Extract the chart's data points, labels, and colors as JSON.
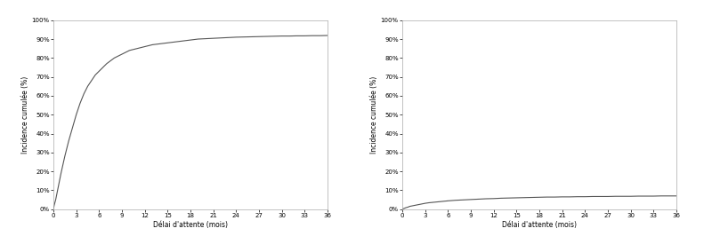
{
  "left_curve": {
    "x": [
      0,
      0.1,
      0.3,
      0.5,
      0.75,
      1,
      1.5,
      2,
      2.5,
      3,
      3.5,
      4,
      4.5,
      5,
      5.5,
      6,
      7,
      8,
      9,
      10,
      11,
      12,
      13,
      14,
      15,
      16,
      17,
      18,
      19,
      20,
      21,
      22,
      23,
      24,
      25,
      26,
      27,
      28,
      29,
      30,
      31,
      32,
      33,
      34,
      35,
      36
    ],
    "y": [
      0,
      2,
      5,
      9,
      14,
      19,
      28,
      36,
      43,
      50,
      56,
      61,
      65,
      68,
      71,
      73,
      77,
      80,
      82,
      84,
      85,
      86,
      87,
      87.5,
      88,
      88.5,
      89,
      89.5,
      90,
      90.2,
      90.4,
      90.6,
      90.8,
      91.0,
      91.1,
      91.2,
      91.3,
      91.4,
      91.5,
      91.6,
      91.6,
      91.7,
      91.7,
      91.8,
      91.8,
      91.9
    ]
  },
  "right_curve": {
    "x": [
      0,
      0.1,
      0.3,
      0.5,
      0.75,
      1,
      1.5,
      2,
      2.5,
      3,
      3.5,
      4,
      4.5,
      5,
      5.5,
      6,
      7,
      8,
      9,
      10,
      11,
      12,
      13,
      14,
      15,
      16,
      17,
      18,
      19,
      20,
      21,
      22,
      23,
      24,
      25,
      26,
      27,
      28,
      29,
      30,
      31,
      32,
      33,
      34,
      35,
      36
    ],
    "y": [
      0,
      0.2,
      0.5,
      0.8,
      1.1,
      1.5,
      1.9,
      2.3,
      2.7,
      3.1,
      3.4,
      3.6,
      3.8,
      4.0,
      4.2,
      4.4,
      4.7,
      4.9,
      5.1,
      5.3,
      5.5,
      5.6,
      5.8,
      5.9,
      6.0,
      6.1,
      6.2,
      6.3,
      6.4,
      6.4,
      6.5,
      6.5,
      6.6,
      6.6,
      6.7,
      6.7,
      6.7,
      6.8,
      6.8,
      6.8,
      6.9,
      6.9,
      6.9,
      7.0,
      7.0,
      7.0
    ]
  },
  "ylabel": "Incidence cumulée (%)",
  "xlabel": "Délai d'attente (mois)",
  "yticks": [
    0,
    10,
    20,
    30,
    40,
    50,
    60,
    70,
    80,
    90,
    100
  ],
  "xticks": [
    0,
    3,
    6,
    9,
    12,
    15,
    18,
    21,
    24,
    27,
    30,
    33,
    36
  ],
  "ylim": [
    0,
    100
  ],
  "xlim": [
    0,
    36
  ],
  "line_color": "#555555",
  "line_width": 0.8,
  "background_color": "#ffffff",
  "tick_fontsize": 5.0,
  "label_fontsize": 5.5,
  "spine_color": "#aaaaaa"
}
